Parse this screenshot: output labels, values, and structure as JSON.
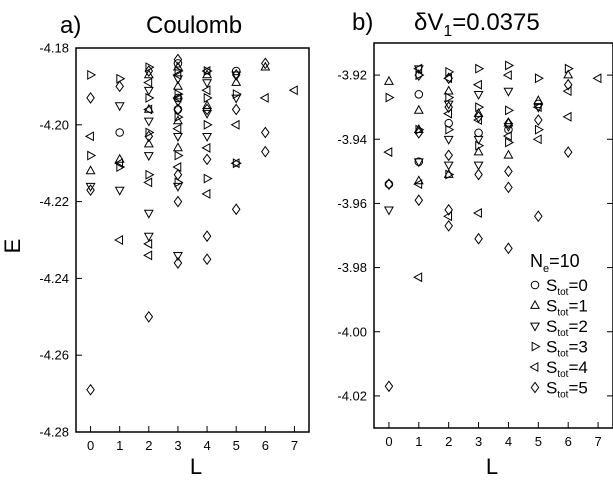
{
  "figure": {
    "legend_title_main": "N",
    "legend_title_sub": "e",
    "legend_title_suffix": "=10"
  },
  "chart_data": [
    {
      "type": "scatter",
      "panel_label": "a)",
      "title": "Coulomb",
      "xlabel": "L",
      "ylabel": "E",
      "xlim": [
        -0.5,
        7.5
      ],
      "ylim": [
        -4.28,
        -4.18
      ],
      "xticks": [
        0,
        1,
        2,
        3,
        4,
        5,
        6,
        7
      ],
      "yticks": [
        -4.28,
        -4.26,
        -4.24,
        -4.22,
        -4.2,
        -4.18
      ],
      "ytick_labels": [
        "-4.28",
        "-4.26",
        "-4.24",
        "-4.22",
        "-4.20",
        "-4.18"
      ],
      "series": [
        {
          "name": "S_tot=0",
          "marker": "circle",
          "points": [
            [
              1,
              -4.202
            ],
            [
              3,
              -4.184
            ],
            [
              3,
              -4.193
            ],
            [
              3,
              -4.196
            ],
            [
              5,
              -4.186
            ]
          ]
        },
        {
          "name": "S_tot=1",
          "marker": "triangle-up",
          "points": [
            [
              0,
              -4.212
            ],
            [
              1,
              -4.209
            ],
            [
              2,
              -4.187
            ],
            [
              2,
              -4.196
            ],
            [
              2,
              -4.205
            ],
            [
              3,
              -4.185
            ],
            [
              3,
              -4.19
            ],
            [
              3,
              -4.199
            ],
            [
              3,
              -4.206
            ],
            [
              4,
              -4.187
            ],
            [
              4,
              -4.195
            ],
            [
              5,
              -4.189
            ],
            [
              6,
              -4.185
            ]
          ]
        },
        {
          "name": "S_tot=2",
          "marker": "triangle-down",
          "points": [
            [
              0,
              -4.216
            ],
            [
              1,
              -4.195
            ],
            [
              1,
              -4.217
            ],
            [
              2,
              -4.191
            ],
            [
              2,
              -4.199
            ],
            [
              2,
              -4.208
            ],
            [
              2,
              -4.223
            ],
            [
              2,
              -4.229
            ],
            [
              3,
              -4.188
            ],
            [
              3,
              -4.194
            ],
            [
              3,
              -4.203
            ],
            [
              3,
              -4.216
            ],
            [
              3,
              -4.234
            ],
            [
              4,
              -4.189
            ],
            [
              4,
              -4.197
            ],
            [
              4,
              -4.203
            ],
            [
              5,
              -4.187
            ],
            [
              5,
              -4.193
            ]
          ]
        },
        {
          "name": "S_tot=3",
          "marker": "triangle-right",
          "points": [
            [
              0,
              -4.187
            ],
            [
              0,
              -4.208
            ],
            [
              1,
              -4.188
            ],
            [
              1,
              -4.211
            ],
            [
              2,
              -4.185
            ],
            [
              2,
              -4.193
            ],
            [
              2,
              -4.202
            ],
            [
              2,
              -4.213
            ],
            [
              3,
              -4.186
            ],
            [
              3,
              -4.192
            ],
            [
              3,
              -4.198
            ],
            [
              3,
              -4.208
            ],
            [
              3,
              -4.215
            ],
            [
              4,
              -4.186
            ],
            [
              4,
              -4.193
            ],
            [
              4,
              -4.2
            ],
            [
              4,
              -4.214
            ],
            [
              5,
              -4.192
            ],
            [
              5,
              -4.21
            ]
          ]
        },
        {
          "name": "S_tot=4",
          "marker": "triangle-left",
          "points": [
            [
              0,
              -4.203
            ],
            [
              1,
              -4.21
            ],
            [
              1,
              -4.23
            ],
            [
              2,
              -4.189
            ],
            [
              2,
              -4.196
            ],
            [
              2,
              -4.215
            ],
            [
              2,
              -4.231
            ],
            [
              2,
              -4.234
            ],
            [
              3,
              -4.187
            ],
            [
              3,
              -4.193
            ],
            [
              3,
              -4.201
            ],
            [
              3,
              -4.211
            ],
            [
              4,
              -4.186
            ],
            [
              4,
              -4.191
            ],
            [
              4,
              -4.206
            ],
            [
              4,
              -4.218
            ],
            [
              5,
              -4.2
            ],
            [
              5,
              -4.21
            ],
            [
              6,
              -4.193
            ],
            [
              7,
              -4.191
            ]
          ]
        },
        {
          "name": "S_tot=5",
          "marker": "diamond",
          "points": [
            [
              0,
              -4.193
            ],
            [
              0,
              -4.217
            ],
            [
              0,
              -4.269
            ],
            [
              1,
              -4.19
            ],
            [
              2,
              -4.186
            ],
            [
              2,
              -4.203
            ],
            [
              2,
              -4.25
            ],
            [
              3,
              -4.183
            ],
            [
              3,
              -4.196
            ],
            [
              3,
              -4.213
            ],
            [
              3,
              -4.22
            ],
            [
              3,
              -4.236
            ],
            [
              4,
              -4.196
            ],
            [
              4,
              -4.209
            ],
            [
              4,
              -4.229
            ],
            [
              4,
              -4.235
            ],
            [
              5,
              -4.187
            ],
            [
              5,
              -4.196
            ],
            [
              5,
              -4.222
            ],
            [
              6,
              -4.184
            ],
            [
              6,
              -4.202
            ],
            [
              6,
              -4.207
            ]
          ]
        }
      ]
    },
    {
      "type": "scatter",
      "panel_label": "b)",
      "title_prefix": "δV",
      "title_sub": "1",
      "title_suffix": "=0.0375",
      "xlabel": "L",
      "ylabel": "",
      "xlim": [
        -0.5,
        7.5
      ],
      "ylim": [
        -4.03,
        -3.91
      ],
      "xticks": [
        0,
        1,
        2,
        3,
        4,
        5,
        6,
        7
      ],
      "yticks": [
        -4.02,
        -4.0,
        -3.98,
        -3.96,
        -3.94,
        -3.92
      ],
      "ytick_labels": [
        "-4.02",
        "-4.00",
        "-3.98",
        "-3.96",
        "-3.94",
        "-3.92"
      ],
      "series": [
        {
          "name": "S_tot=0",
          "marker": "circle",
          "points": [
            [
              0,
              -3.954
            ],
            [
              1,
              -3.926
            ],
            [
              1,
              -3.947
            ],
            [
              2,
              -3.935
            ],
            [
              3,
              -3.938
            ],
            [
              4,
              -3.937
            ],
            [
              5,
              -3.929
            ]
          ]
        },
        {
          "name": "S_tot=1",
          "marker": "triangle-up",
          "points": [
            [
              0,
              -3.922
            ],
            [
              1,
              -3.931
            ],
            [
              1,
              -3.937
            ],
            [
              1,
              -3.953
            ],
            [
              2,
              -3.925
            ],
            [
              2,
              -3.951
            ],
            [
              3,
              -3.932
            ],
            [
              3,
              -3.944
            ],
            [
              4,
              -3.935
            ],
            [
              4,
              -3.945
            ],
            [
              5,
              -3.928
            ],
            [
              6,
              -3.92
            ]
          ]
        },
        {
          "name": "S_tot=2",
          "marker": "triangle-down",
          "points": [
            [
              0,
              -3.962
            ],
            [
              1,
              -3.918
            ],
            [
              1,
              -3.947
            ],
            [
              2,
              -3.929
            ],
            [
              2,
              -3.94
            ],
            [
              2,
              -3.948
            ],
            [
              3,
              -3.926
            ],
            [
              3,
              -3.94
            ],
            [
              3,
              -3.948
            ],
            [
              4,
              -3.925
            ],
            [
              4,
              -3.936
            ],
            [
              5,
              -3.93
            ]
          ]
        },
        {
          "name": "S_tot=3",
          "marker": "triangle-right",
          "points": [
            [
              0,
              -3.927
            ],
            [
              1,
              -3.92
            ],
            [
              1,
              -3.937
            ],
            [
              2,
              -3.919
            ],
            [
              2,
              -3.927
            ],
            [
              2,
              -3.937
            ],
            [
              2,
              -3.951
            ],
            [
              3,
              -3.918
            ],
            [
              3,
              -3.93
            ],
            [
              3,
              -3.942
            ],
            [
              4,
              -3.917
            ],
            [
              4,
              -3.931
            ],
            [
              4,
              -3.941
            ],
            [
              5,
              -3.921
            ],
            [
              5,
              -3.937
            ],
            [
              6,
              -3.918
            ]
          ]
        },
        {
          "name": "S_tot=4",
          "marker": "triangle-left",
          "points": [
            [
              0,
              -3.944
            ],
            [
              1,
              -3.918
            ],
            [
              1,
              -3.954
            ],
            [
              1,
              -3.983
            ],
            [
              2,
              -3.921
            ],
            [
              2,
              -3.932
            ],
            [
              2,
              -3.964
            ],
            [
              3,
              -3.923
            ],
            [
              3,
              -3.934
            ],
            [
              3,
              -3.963
            ],
            [
              4,
              -3.92
            ],
            [
              4,
              -3.939
            ],
            [
              5,
              -3.93
            ],
            [
              5,
              -3.94
            ],
            [
              6,
              -3.933
            ],
            [
              6,
              -3.925
            ],
            [
              7,
              -3.921
            ]
          ]
        },
        {
          "name": "S_tot=5",
          "marker": "diamond",
          "points": [
            [
              0,
              -3.954
            ],
            [
              0,
              -4.017
            ],
            [
              1,
              -3.92
            ],
            [
              1,
              -3.938
            ],
            [
              1,
              -3.959
            ],
            [
              2,
              -3.921
            ],
            [
              2,
              -3.93
            ],
            [
              2,
              -3.945
            ],
            [
              2,
              -3.962
            ],
            [
              2,
              -3.967
            ],
            [
              3,
              -3.933
            ],
            [
              3,
              -3.951
            ],
            [
              3,
              -3.971
            ],
            [
              4,
              -3.935
            ],
            [
              4,
              -3.95
            ],
            [
              4,
              -3.955
            ],
            [
              4,
              -3.974
            ],
            [
              5,
              -3.934
            ],
            [
              5,
              -3.964
            ],
            [
              6,
              -3.923
            ],
            [
              6,
              -3.944
            ]
          ]
        }
      ]
    }
  ]
}
